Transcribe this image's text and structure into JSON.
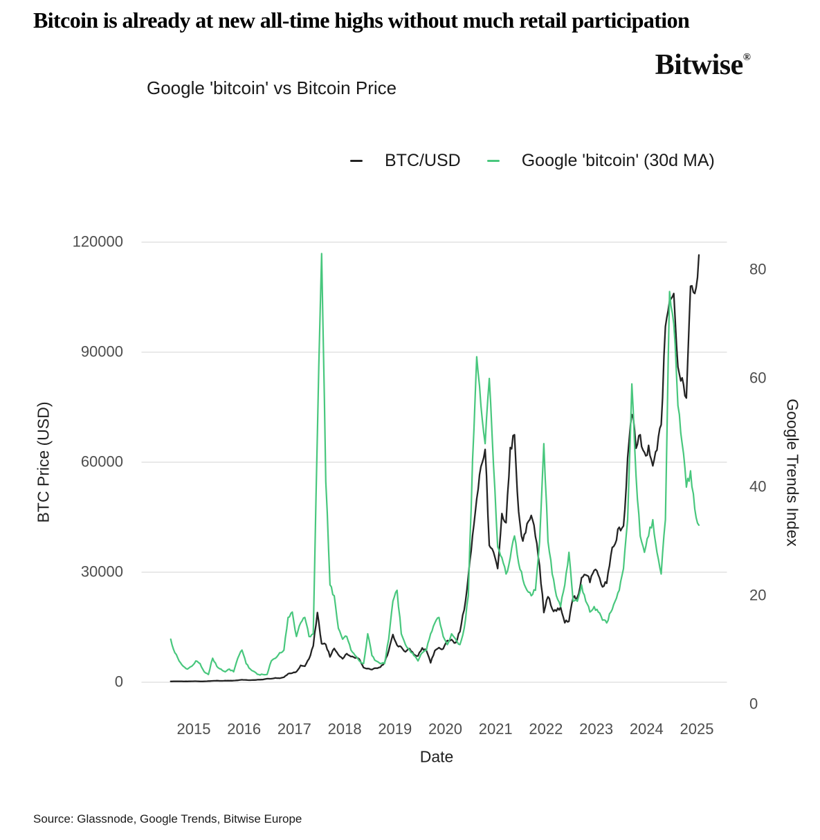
{
  "header": {
    "title": "Bitcoin is already at new all-time highs without much retail participation",
    "brand": "Bitwise",
    "brand_mark": "®"
  },
  "chart": {
    "subtitle": "Google 'bitcoin' vs Bitcoin Price",
    "xlabel": "Date",
    "left_axis_label": "BTC Price (USD)",
    "right_axis_label": "Google Trends Index"
  },
  "footer": {
    "source": "Source: Glassnode, Google Trends, Bitwise Europe"
  },
  "chart_data": {
    "type": "line",
    "title": "Google 'bitcoin' vs Bitcoin Price",
    "xlabel": "Date",
    "grid": "horizontal-only",
    "legend_position": "top-center",
    "x_tick_labels": [
      "2015",
      "2016",
      "2017",
      "2018",
      "2019",
      "2020",
      "2021",
      "2022",
      "2023",
      "2024",
      "2025"
    ],
    "x_range": {
      "start": "2015-01",
      "end": "2025-07",
      "frequency": "monthly"
    },
    "left_axis": {
      "label": "BTC Price (USD)",
      "ticks": [
        0,
        30000,
        60000,
        90000,
        120000
      ],
      "range": [
        0,
        120000
      ]
    },
    "right_axis": {
      "label": "Google Trends Index",
      "ticks": [
        0,
        20,
        40,
        60,
        80
      ],
      "range": [
        0,
        83
      ]
    },
    "colors": {
      "btc": "#232323",
      "trends": "#48c77d",
      "grid": "#dcdcdc"
    },
    "series": [
      {
        "name": "BTC/USD",
        "axis": "left",
        "color": "#232323",
        "values": [
          220,
          250,
          245,
          235,
          235,
          260,
          285,
          230,
          236,
          312,
          377,
          430,
          370,
          436,
          416,
          450,
          530,
          670,
          625,
          575,
          610,
          700,
          745,
          960,
          970,
          1180,
          1080,
          1350,
          2300,
          2500,
          2870,
          4600,
          4350,
          6400,
          9900,
          19000,
          10500,
          10300,
          6900,
          9200,
          7500,
          6400,
          7800,
          7000,
          6600,
          6300,
          4000,
          3740,
          3460,
          3850,
          4100,
          5300,
          8550,
          13000,
          10100,
          9600,
          8300,
          9150,
          7550,
          7190,
          9350,
          8600,
          5300,
          8600,
          9450,
          9140,
          11350,
          11650,
          10780,
          13800,
          19700,
          29000,
          40000,
          50000,
          58800,
          63500,
          37300,
          35500,
          31000,
          46000,
          43500,
          64000,
          67500,
          46500,
          38500,
          43200,
          45500,
          39700,
          31800,
          19000,
          23300,
          20000,
          19400,
          20500,
          16200,
          16600,
          23100,
          23150,
          28500,
          29250,
          27200,
          30480,
          29230,
          26000,
          26960,
          34650,
          37720,
          42270,
          42600,
          61200,
          73000,
          63800,
          67500,
          62700,
          64600,
          59000,
          63300,
          70200,
          97000,
          104000,
          106000,
          86000,
          83000,
          77500,
          108000,
          106000,
          116500
        ]
      },
      {
        "name": "Google 'bitcoin' (30d MA)",
        "axis": "right",
        "color": "#48c77d",
        "values": [
          12,
          9.5,
          8,
          7,
          6.5,
          7,
          8,
          7.5,
          6,
          5.5,
          8.5,
          7,
          6.5,
          6,
          6.5,
          6,
          8.5,
          10,
          7.5,
          6.5,
          6,
          5.5,
          5.5,
          5.5,
          8,
          8.5,
          9.5,
          10,
          16,
          17,
          12.5,
          15,
          16,
          12.5,
          13,
          50,
          83,
          41,
          22,
          20,
          14,
          12,
          12.5,
          10,
          9,
          8,
          7.5,
          13,
          9,
          8,
          7.5,
          7.5,
          12,
          19,
          21,
          13,
          11,
          10,
          9,
          8,
          9.5,
          10,
          13,
          15,
          16,
          12.5,
          11,
          13,
          12,
          11,
          14,
          20,
          45,
          64,
          55,
          48,
          60,
          44,
          29,
          27,
          24,
          27,
          31,
          26,
          23,
          21,
          20,
          21,
          30,
          48,
          30,
          24,
          20,
          18,
          22,
          28,
          19,
          19,
          22,
          19,
          17,
          18,
          17,
          15.5,
          15,
          17,
          19,
          21,
          25,
          34,
          59,
          42,
          31,
          28,
          31,
          34,
          28,
          24,
          34,
          76,
          70,
          55,
          48,
          40,
          43,
          36,
          33
        ]
      }
    ]
  }
}
